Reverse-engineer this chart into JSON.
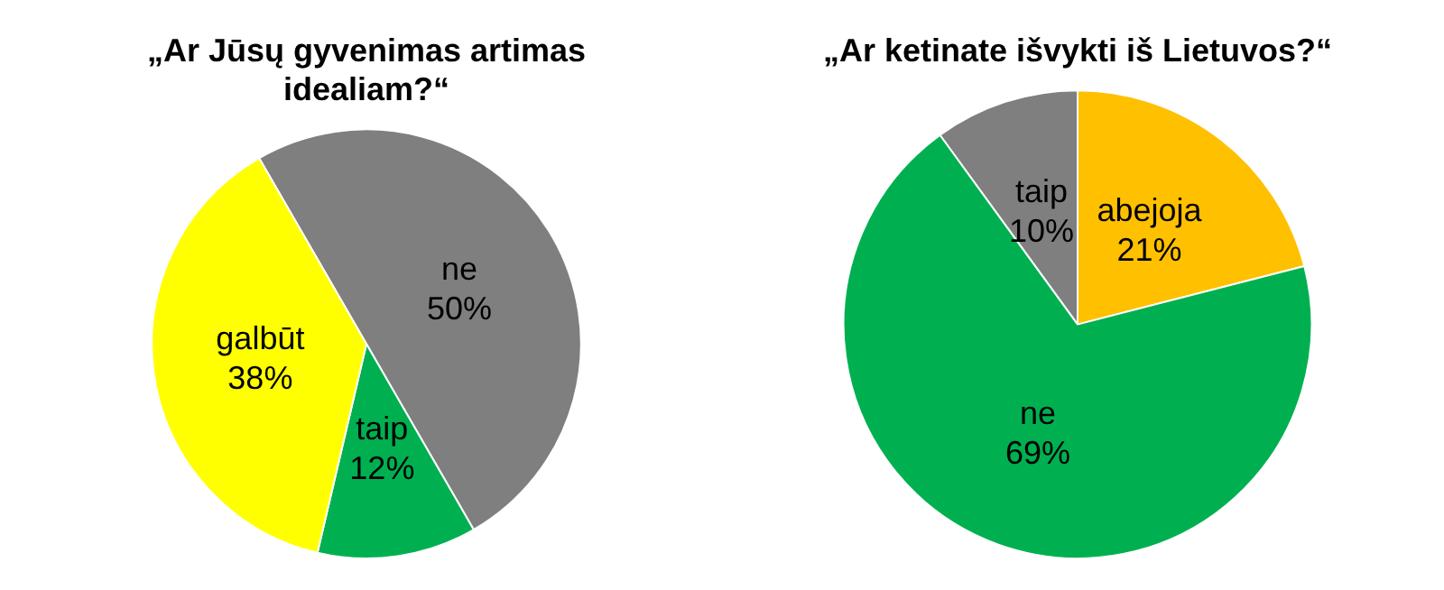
{
  "chart_data": [
    {
      "type": "pie",
      "title": "„Ar Jūsų gyvenimas artimas idealiam?“",
      "categories": [
        "ne",
        "taip",
        "galbūt"
      ],
      "values": [
        50,
        12,
        38
      ],
      "value_labels": [
        "50%",
        "12%",
        "38%"
      ],
      "colors": [
        "#7f7f7f",
        "#00b050",
        "#ffff00"
      ],
      "legend": false
    },
    {
      "type": "pie",
      "title": "„Ar ketinate išvykti iš Lietuvos?“",
      "categories": [
        "taip",
        "abejoja",
        "ne"
      ],
      "values": [
        10,
        21,
        69
      ],
      "value_labels": [
        "10%",
        "21%",
        "69%"
      ],
      "colors": [
        "#7f7f7f",
        "#ffc000",
        "#00b050"
      ],
      "legend": false
    }
  ]
}
